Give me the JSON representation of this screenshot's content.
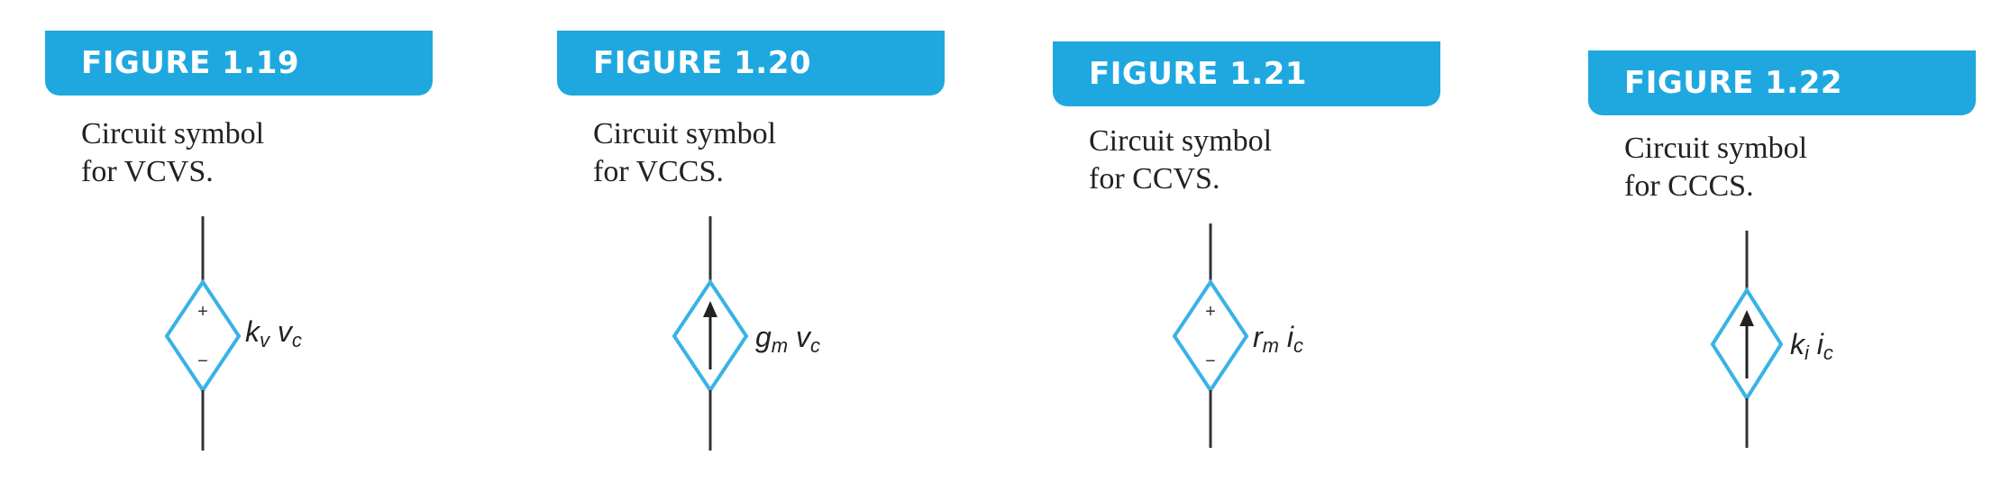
{
  "colors": {
    "tab": "#1fa8e0",
    "symbol": "#39b2e6",
    "line": "#333333",
    "text": "#222222"
  },
  "figures": [
    {
      "tab": "FIGURE 1.19",
      "caption_line1": "Circuit symbol",
      "caption_line2": "for VCVS.",
      "symbol": "voltage-source",
      "label_main1": "k",
      "label_sub1": "v",
      "label_main2": "v",
      "label_sub2": "c"
    },
    {
      "tab": "FIGURE 1.20",
      "caption_line1": "Circuit symbol",
      "caption_line2": "for VCCS.",
      "symbol": "current-source",
      "label_main1": "g",
      "label_sub1": "m",
      "label_main2": "v",
      "label_sub2": "c"
    },
    {
      "tab": "FIGURE 1.21",
      "caption_line1": "Circuit symbol",
      "caption_line2": "for CCVS.",
      "symbol": "voltage-source",
      "label_main1": "r",
      "label_sub1": "m",
      "label_main2": "i",
      "label_sub2": "c"
    },
    {
      "tab": "FIGURE 1.22",
      "caption_line1": "Circuit symbol",
      "caption_line2": "for CCCS.",
      "symbol": "current-source",
      "label_main1": "k",
      "label_sub1": "i",
      "label_main2": "i",
      "label_sub2": "c"
    }
  ]
}
